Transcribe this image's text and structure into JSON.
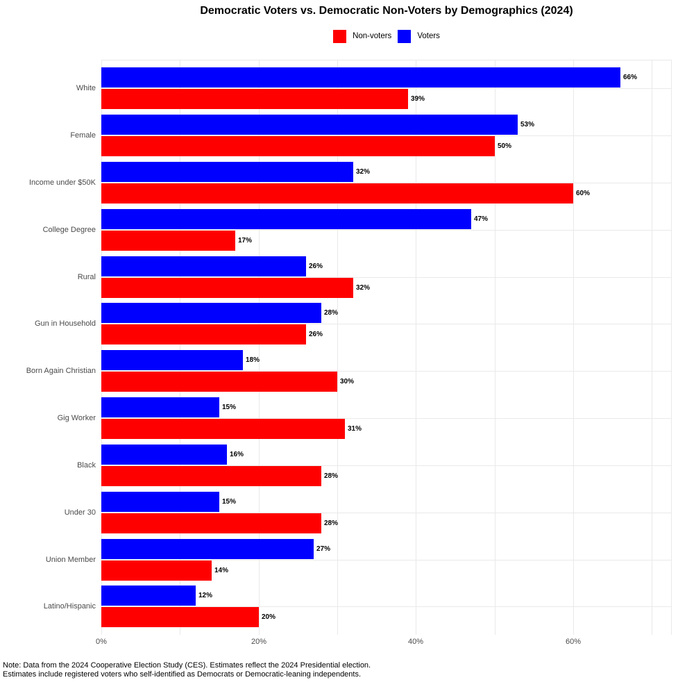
{
  "title": "Democratic Voters vs. Democratic Non-Voters by Demographics (2024)",
  "chart_data": {
    "type": "bar",
    "orientation": "horizontal",
    "title": "Democratic Voters vs. Democratic Non-Voters by Demographics (2024)",
    "categories": [
      "White",
      "Female",
      "Income under $50K",
      "College Degree",
      "Rural",
      "Gun in Household",
      "Born Again Christian",
      "Gig Worker",
      "Black",
      "Under 30",
      "Union Member",
      "Latino/Hispanic"
    ],
    "series": [
      {
        "name": "Voters",
        "color": "#0000FF",
        "values": [
          66,
          53,
          32,
          47,
          26,
          28,
          18,
          15,
          16,
          15,
          27,
          12
        ]
      },
      {
        "name": "Non-voters",
        "color": "#FF0000",
        "values": [
          39,
          50,
          60,
          17,
          32,
          26,
          30,
          31,
          28,
          28,
          14,
          20
        ]
      }
    ],
    "value_suffix": "%",
    "legend_position": "top",
    "legend_order": [
      "Non-voters",
      "Voters"
    ],
    "x_axis": {
      "tick_labels": [
        "0%",
        "20%",
        "40%",
        "60%"
      ],
      "tick_values": [
        0,
        20,
        40,
        60
      ],
      "range": [
        0,
        72.5
      ],
      "gridline_step": 10
    },
    "grid": true,
    "background": "#FFFFFF"
  },
  "note": {
    "line1": "Note: Data from the 2024 Cooperative Election Study (CES). Estimates reflect the 2024 Presidential election.",
    "line2": "Estimates include registered voters who self-identified as Democrats or Democratic-leaning independents."
  }
}
